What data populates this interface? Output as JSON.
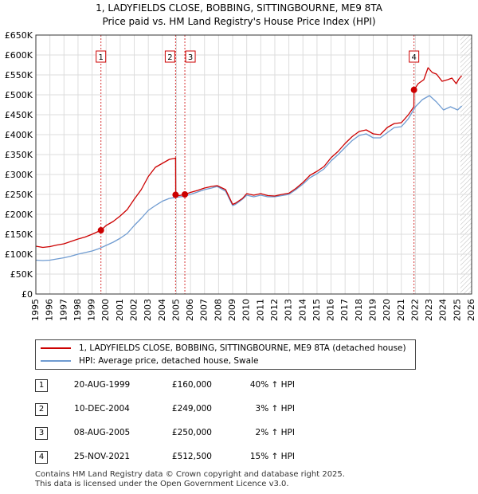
{
  "title_line1": "1, LADYFIELDS CLOSE, BOBBING, SITTINGBOURNE, ME9 8TA",
  "title_line2": "Price paid vs. HM Land Registry's House Price Index (HPI)",
  "chart_data": {
    "type": "line",
    "title": "Price paid vs. HM Land Registry's House Price Index (HPI)",
    "xlabel": "",
    "ylabel": "",
    "xlim": [
      1995,
      2026
    ],
    "ylim": [
      0,
      650000
    ],
    "x_ticks": [
      1995,
      1996,
      1997,
      1998,
      1999,
      2000,
      2001,
      2002,
      2003,
      2004,
      2005,
      2006,
      2007,
      2008,
      2009,
      2010,
      2011,
      2012,
      2013,
      2014,
      2015,
      2016,
      2017,
      2018,
      2019,
      2020,
      2021,
      2022,
      2023,
      2024,
      2025,
      2026
    ],
    "y_ticks": [
      0,
      50000,
      100000,
      150000,
      200000,
      250000,
      300000,
      350000,
      400000,
      450000,
      500000,
      550000,
      600000,
      650000
    ],
    "y_tick_labels": [
      "£0",
      "£50K",
      "£100K",
      "£150K",
      "£200K",
      "£250K",
      "£300K",
      "£350K",
      "£400K",
      "£450K",
      "£500K",
      "£550K",
      "£600K",
      "£650K"
    ],
    "grid": true,
    "series": [
      {
        "name": "1, LADYFIELDS CLOSE, BOBBING, SITTINGBOURNE, ME9 8TA (detached house)",
        "color": "#cc0000",
        "x": [
          1995.0,
          1995.5,
          1996.0,
          1996.5,
          1997.0,
          1997.5,
          1998.0,
          1998.5,
          1999.0,
          1999.63,
          2000.0,
          2000.5,
          2001.0,
          2001.5,
          2002.0,
          2002.5,
          2003.0,
          2003.5,
          2004.0,
          2004.5,
          2004.94,
          2004.95,
          2005.2,
          2005.6,
          2006.0,
          2006.5,
          2007.0,
          2007.5,
          2007.9,
          2008.5,
          2009.0,
          2009.2,
          2009.7,
          2010.0,
          2010.5,
          2011.0,
          2011.5,
          2012.0,
          2012.5,
          2013.0,
          2013.5,
          2014.0,
          2014.5,
          2015.0,
          2015.5,
          2016.0,
          2016.5,
          2017.0,
          2017.5,
          2018.0,
          2018.5,
          2019.0,
          2019.5,
          2020.0,
          2020.5,
          2021.0,
          2021.5,
          2021.89,
          2021.9,
          2022.2,
          2022.6,
          2022.9,
          2023.2,
          2023.5,
          2023.9,
          2024.3,
          2024.6,
          2024.9,
          2025.1,
          2025.3
        ],
        "values": [
          120000,
          117000,
          119000,
          123000,
          126000,
          132000,
          138000,
          143000,
          150000,
          160000,
          172000,
          182000,
          196000,
          212000,
          238000,
          262000,
          295000,
          318000,
          328000,
          338000,
          341000,
          249000,
          247000,
          250000,
          255000,
          260000,
          266000,
          270000,
          272000,
          262000,
          225000,
          228000,
          240000,
          252000,
          248000,
          252000,
          247000,
          246000,
          250000,
          253000,
          265000,
          280000,
          298000,
          308000,
          320000,
          342000,
          358000,
          378000,
          395000,
          408000,
          412000,
          402000,
          400000,
          418000,
          428000,
          430000,
          450000,
          470000,
          512500,
          528000,
          538000,
          568000,
          556000,
          552000,
          534000,
          538000,
          542000,
          528000,
          540000,
          548000
        ]
      },
      {
        "name": "HPI: Average price, detached house, Swale",
        "color": "#6f9bd1",
        "x": [
          1995.0,
          1995.5,
          1996.0,
          1996.5,
          1997.0,
          1997.5,
          1998.0,
          1998.5,
          1999.0,
          1999.5,
          2000.0,
          2000.5,
          2001.0,
          2001.5,
          2002.0,
          2002.5,
          2003.0,
          2003.5,
          2004.0,
          2004.5,
          2005.0,
          2005.5,
          2006.0,
          2006.5,
          2007.0,
          2007.5,
          2007.9,
          2008.5,
          2009.0,
          2009.2,
          2009.7,
          2010.0,
          2010.5,
          2011.0,
          2011.5,
          2012.0,
          2012.5,
          2013.0,
          2013.5,
          2014.0,
          2014.5,
          2015.0,
          2015.5,
          2016.0,
          2016.5,
          2017.0,
          2017.5,
          2018.0,
          2018.5,
          2019.0,
          2019.5,
          2020.0,
          2020.5,
          2021.0,
          2021.5,
          2022.0,
          2022.5,
          2023.0,
          2023.5,
          2024.0,
          2024.5,
          2025.0,
          2025.3
        ],
        "values": [
          85000,
          84000,
          85000,
          88000,
          91000,
          95000,
          100000,
          104000,
          108000,
          114000,
          122000,
          130000,
          140000,
          152000,
          172000,
          190000,
          210000,
          222000,
          233000,
          240000,
          243000,
          245000,
          250000,
          256000,
          262000,
          266000,
          270000,
          258000,
          222000,
          225000,
          238000,
          248000,
          244000,
          248000,
          244000,
          244000,
          247000,
          250000,
          262000,
          276000,
          292000,
          302000,
          314000,
          334000,
          350000,
          368000,
          385000,
          398000,
          402000,
          392000,
          392000,
          405000,
          418000,
          420000,
          440000,
          470000,
          488000,
          498000,
          482000,
          462000,
          470000,
          462000,
          472000
        ]
      }
    ],
    "sale_markers": [
      {
        "label": "1",
        "x": 1999.63,
        "value": 160000
      },
      {
        "label": "2",
        "x": 2004.94,
        "value": 249000
      },
      {
        "label": "3",
        "x": 2005.6,
        "value": 250000
      },
      {
        "label": "4",
        "x": 2021.9,
        "value": 512500
      }
    ],
    "shaded_regions": [
      [
        2025.2,
        2026
      ]
    ]
  },
  "legend": {
    "property_label": "1, LADYFIELDS CLOSE, BOBBING, SITTINGBOURNE, ME9 8TA (detached house)",
    "hpi_label": "HPI: Average price, detached house, Swale",
    "property_color": "#cc0000",
    "hpi_color": "#6f9bd1"
  },
  "sales": [
    {
      "num": "1",
      "date": "20-AUG-1999",
      "price": "£160,000",
      "hpi": "40% ↑ HPI"
    },
    {
      "num": "2",
      "date": "10-DEC-2004",
      "price": "£249,000",
      "hpi": "3% ↑ HPI"
    },
    {
      "num": "3",
      "date": "08-AUG-2005",
      "price": "£250,000",
      "hpi": "2% ↑ HPI"
    },
    {
      "num": "4",
      "date": "25-NOV-2021",
      "price": "£512,500",
      "hpi": "15% ↑ HPI"
    }
  ],
  "footer_line1": "Contains HM Land Registry data © Crown copyright and database right 2025.",
  "footer_line2": "This data is licensed under the Open Government Licence v3.0."
}
